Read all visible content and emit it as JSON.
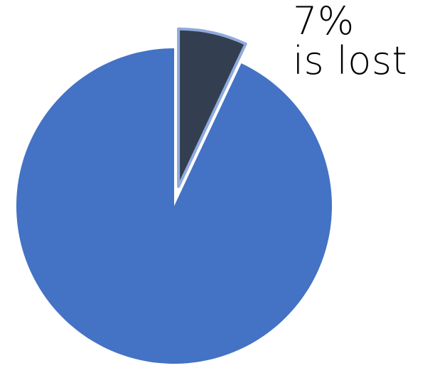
{
  "chart_data": {
    "type": "pie",
    "slices": [
      {
        "value": 7,
        "color": "#333F50",
        "exploded": true,
        "stroke": "#8FAADC"
      },
      {
        "value": 93,
        "color": "#4472C4",
        "exploded": false
      }
    ],
    "annotation": {
      "value_text": "7%",
      "label_text": "is lost"
    }
  }
}
